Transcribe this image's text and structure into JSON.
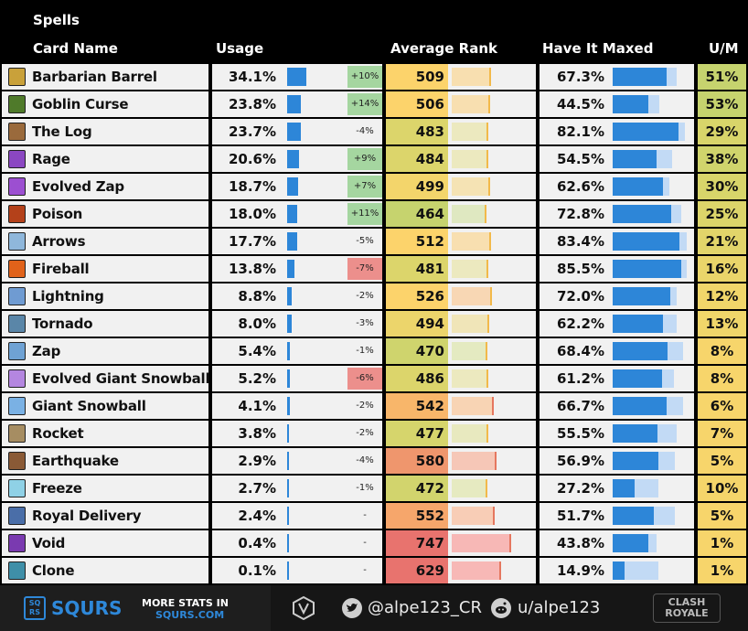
{
  "section_title": "Spells",
  "headers": {
    "card_name": "Card Name",
    "usage": "Usage",
    "average_rank": "Average Rank",
    "have_it_maxed": "Have It Maxed",
    "um": "U/M"
  },
  "colors": {
    "usage_bar": "#2d86d8",
    "maxed_bar": "#2d86d8",
    "maxed_bg": "#c2daf5",
    "delta_pos": "#a5d6a0",
    "delta_neg": "#ec8f8c"
  },
  "scales": {
    "usage_max_pct": 34.1,
    "maxed_max_pct": 100,
    "rank_min": 460,
    "rank_max": 760
  },
  "rows": [
    {
      "name": "Barbarian Barrel",
      "icon": "barbarian-barrel-icon",
      "icon_color": "#c9a13a",
      "usage": "34.1%",
      "usage_pct": 34.1,
      "delta": "+10%",
      "delta_type": "pos",
      "rank": "509",
      "rank_val": 509,
      "rank_cell": "#fcd36b",
      "rank_bar": "#f8dfb0",
      "maxed": "67.3%",
      "maxed_pct": 67.3,
      "maxed_total_pct": 80,
      "um": "51%",
      "um_bg": "#c6d36e"
    },
    {
      "name": "Goblin Curse",
      "icon": "goblin-curse-icon",
      "icon_color": "#4f7a2a",
      "usage": "23.8%",
      "usage_pct": 23.8,
      "delta": "+14%",
      "delta_type": "pos",
      "rank": "506",
      "rank_val": 506,
      "rank_cell": "#fcd36b",
      "rank_bar": "#f8dfb0",
      "maxed": "44.5%",
      "maxed_pct": 44.5,
      "maxed_total_pct": 58,
      "um": "53%",
      "um_bg": "#c6d36e"
    },
    {
      "name": "The Log",
      "icon": "the-log-icon",
      "icon_color": "#9a6a3c",
      "usage": "23.7%",
      "usage_pct": 23.7,
      "delta": "-4%",
      "delta_type": "none",
      "rank": "483",
      "rank_val": 483,
      "rank_cell": "#dcd56b",
      "rank_bar": "#ece9bf",
      "maxed": "82.1%",
      "maxed_pct": 82.1,
      "maxed_total_pct": 90,
      "um": "29%",
      "um_bg": "#d8d56a"
    },
    {
      "name": "Rage",
      "icon": "rage-icon",
      "icon_color": "#8b47c2",
      "usage": "20.6%",
      "usage_pct": 20.6,
      "delta": "+9%",
      "delta_type": "pos",
      "rank": "484",
      "rank_val": 484,
      "rank_cell": "#dcd56b",
      "rank_bar": "#ece9bf",
      "maxed": "54.5%",
      "maxed_pct": 54.5,
      "maxed_total_pct": 74,
      "um": "38%",
      "um_bg": "#d0d46c"
    },
    {
      "name": "Evolved Zap",
      "icon": "evolved-zap-icon",
      "icon_color": "#9c4fd1",
      "usage": "18.7%",
      "usage_pct": 18.7,
      "delta": "+7%",
      "delta_type": "pos",
      "rank": "499",
      "rank_val": 499,
      "rank_cell": "#f3d56b",
      "rank_bar": "#f5e3b4",
      "maxed": "62.6%",
      "maxed_pct": 62.6,
      "maxed_total_pct": 70,
      "um": "30%",
      "um_bg": "#d8d56a"
    },
    {
      "name": "Poison",
      "icon": "poison-icon",
      "icon_color": "#b4411a",
      "usage": "18.0%",
      "usage_pct": 18.0,
      "delta": "+11%",
      "delta_type": "pos",
      "rank": "464",
      "rank_val": 464,
      "rank_cell": "#c6d36e",
      "rank_bar": "#dfe8c1",
      "maxed": "72.8%",
      "maxed_pct": 72.8,
      "maxed_total_pct": 85,
      "um": "25%",
      "um_bg": "#dcd56a"
    },
    {
      "name": "Arrows",
      "icon": "arrows-icon",
      "icon_color": "#8fb7db",
      "usage": "17.7%",
      "usage_pct": 17.7,
      "delta": "-5%",
      "delta_type": "none",
      "rank": "512",
      "rank_val": 512,
      "rank_cell": "#fcd36b",
      "rank_bar": "#f8dfb0",
      "maxed": "83.4%",
      "maxed_pct": 83.4,
      "maxed_total_pct": 92,
      "um": "21%",
      "um_bg": "#e2d56a"
    },
    {
      "name": "Fireball",
      "icon": "fireball-icon",
      "icon_color": "#e0621a",
      "usage": "13.8%",
      "usage_pct": 13.8,
      "delta": "-7%",
      "delta_type": "neg",
      "rank": "481",
      "rank_val": 481,
      "rank_cell": "#dcd56b",
      "rank_bar": "#ece9bf",
      "maxed": "85.5%",
      "maxed_pct": 85.5,
      "maxed_total_pct": 92,
      "um": "16%",
      "um_bg": "#ead56a"
    },
    {
      "name": "Lightning",
      "icon": "lightning-icon",
      "icon_color": "#6f9bd2",
      "usage": "8.8%",
      "usage_pct": 8.8,
      "delta": "-2%",
      "delta_type": "none",
      "rank": "526",
      "rank_val": 526,
      "rank_cell": "#fcd36b",
      "rank_bar": "#f8d7b4",
      "maxed": "72.0%",
      "maxed_pct": 72.0,
      "maxed_total_pct": 80,
      "um": "12%",
      "um_bg": "#f0d66a"
    },
    {
      "name": "Tornado",
      "icon": "tornado-icon",
      "icon_color": "#5a86a8",
      "usage": "8.0%",
      "usage_pct": 8.0,
      "delta": "-3%",
      "delta_type": "none",
      "rank": "494",
      "rank_val": 494,
      "rank_cell": "#ecd56b",
      "rank_bar": "#f0e5b8",
      "maxed": "62.2%",
      "maxed_pct": 62.2,
      "maxed_total_pct": 80,
      "um": "13%",
      "um_bg": "#f0d66a"
    },
    {
      "name": "Zap",
      "icon": "zap-icon",
      "icon_color": "#6fa2d4",
      "usage": "5.4%",
      "usage_pct": 5.4,
      "delta": "-1%",
      "delta_type": "none",
      "rank": "470",
      "rank_val": 470,
      "rank_cell": "#cfd46d",
      "rank_bar": "#e4eac1",
      "maxed": "68.4%",
      "maxed_pct": 68.4,
      "maxed_total_pct": 88,
      "um": "8%",
      "um_bg": "#f7d56b"
    },
    {
      "name": "Evolved Giant Snowball",
      "icon": "evolved-giant-snowball-icon",
      "icon_color": "#b486e0",
      "usage": "5.2%",
      "usage_pct": 5.2,
      "delta": "-6%",
      "delta_type": "neg",
      "rank": "486",
      "rank_val": 486,
      "rank_cell": "#dcd56b",
      "rank_bar": "#ece9bf",
      "maxed": "61.2%",
      "maxed_pct": 61.2,
      "maxed_total_pct": 76,
      "um": "8%",
      "um_bg": "#f7d56b"
    },
    {
      "name": "Giant Snowball",
      "icon": "giant-snowball-icon",
      "icon_color": "#7ab1e4",
      "usage": "4.1%",
      "usage_pct": 4.1,
      "delta": "-2%",
      "delta_type": "none",
      "rank": "542",
      "rank_val": 542,
      "rank_cell": "#f8b66a",
      "rank_bar": "#f8d4b4",
      "maxed": "66.7%",
      "maxed_pct": 66.7,
      "maxed_total_pct": 87,
      "um": "6%",
      "um_bg": "#f7d56b"
    },
    {
      "name": "Rocket",
      "icon": "rocket-icon",
      "icon_color": "#a68d62",
      "usage": "3.8%",
      "usage_pct": 3.8,
      "delta": "-2%",
      "delta_type": "none",
      "rank": "477",
      "rank_val": 477,
      "rank_cell": "#d6d56c",
      "rank_bar": "#e8e9bf",
      "maxed": "55.5%",
      "maxed_pct": 55.5,
      "maxed_total_pct": 79,
      "um": "7%",
      "um_bg": "#f7d56b"
    },
    {
      "name": "Earthquake",
      "icon": "earthquake-icon",
      "icon_color": "#8a5a36",
      "usage": "2.9%",
      "usage_pct": 2.9,
      "delta": "-4%",
      "delta_type": "none",
      "rank": "580",
      "rank_val": 580,
      "rank_cell": "#ef966d",
      "rank_bar": "#f6c7b7",
      "maxed": "56.9%",
      "maxed_pct": 56.9,
      "maxed_total_pct": 77,
      "um": "5%",
      "um_bg": "#f7d56b"
    },
    {
      "name": "Freeze",
      "icon": "freeze-icon",
      "icon_color": "#8fd1e6",
      "usage": "2.7%",
      "usage_pct": 2.7,
      "delta": "-1%",
      "delta_type": "none",
      "rank": "472",
      "rank_val": 472,
      "rank_cell": "#d2d46d",
      "rank_bar": "#e6eac1",
      "maxed": "27.2%",
      "maxed_pct": 27.2,
      "maxed_total_pct": 57,
      "um": "10%",
      "um_bg": "#f5d56a"
    },
    {
      "name": "Royal Delivery",
      "icon": "royal-delivery-icon",
      "icon_color": "#4a6ea8",
      "usage": "2.4%",
      "usage_pct": 2.4,
      "delta": "-",
      "delta_type": "none",
      "rank": "552",
      "rank_val": 552,
      "rank_cell": "#f6a66b",
      "rank_bar": "#f8cdb6",
      "maxed": "51.7%",
      "maxed_pct": 51.7,
      "maxed_total_pct": 77,
      "um": "5%",
      "um_bg": "#f7d56b"
    },
    {
      "name": "Void",
      "icon": "void-icon",
      "icon_color": "#7a3ab0",
      "usage": "0.4%",
      "usage_pct": 0.4,
      "delta": "-",
      "delta_type": "none",
      "rank": "747",
      "rank_val": 747,
      "rank_cell": "#e8736e",
      "rank_bar": "#f7b8b6",
      "maxed": "43.8%",
      "maxed_pct": 43.8,
      "maxed_total_pct": 55,
      "um": "1%",
      "um_bg": "#f7d56b"
    },
    {
      "name": "Clone",
      "icon": "clone-icon",
      "icon_color": "#3f8fa8",
      "usage": "0.1%",
      "usage_pct": 0.1,
      "delta": "-",
      "delta_type": "none",
      "rank": "629",
      "rank_val": 629,
      "rank_cell": "#e8736e",
      "rank_bar": "#f7b8b6",
      "maxed": "14.9%",
      "maxed_pct": 14.9,
      "maxed_total_pct": 57,
      "um": "1%",
      "um_bg": "#f7d56b"
    }
  ],
  "footer": {
    "brand": "SQURS",
    "brand_badge_top": "SQ",
    "brand_badge_bottom": "RS",
    "more_stats_line1": "MORE STATS IN",
    "more_stats_line2": "SQURS.COM",
    "twitter_handle": "@alpe123_CR",
    "reddit_handle": "u/alpe123",
    "game_logo_line1": "CLASH",
    "game_logo_line2": "ROYALE",
    "colors": {
      "bg": "#1e1e1e",
      "link": "#2e88d9",
      "accent": "#e6c15a"
    }
  }
}
